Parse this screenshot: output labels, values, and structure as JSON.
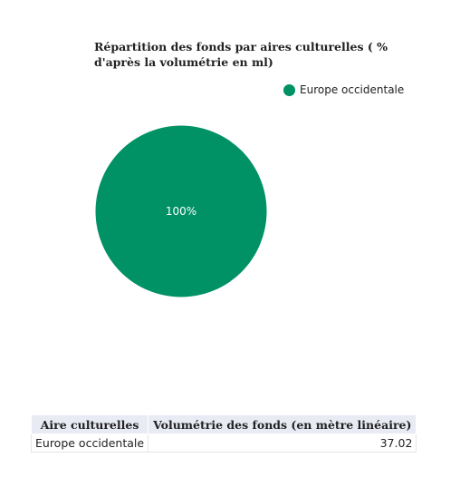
{
  "chart_data": {
    "type": "pie",
    "title": "Répartition des fonds par aires culturelles ( % d'après la volumétrie en ml)",
    "series": [
      {
        "name": "Europe occidentale",
        "values": [
          100
        ]
      }
    ],
    "slices": [
      {
        "label": "Europe occidentale",
        "value": 100,
        "display": "100%",
        "color": "#009165"
      }
    ],
    "legend_position": "top-right"
  },
  "table": {
    "headers": [
      "Aire culturelles",
      "Volumétrie des fonds (en mètre linéaire)"
    ],
    "rows": [
      [
        "Europe occidentale",
        "37.02"
      ]
    ]
  }
}
